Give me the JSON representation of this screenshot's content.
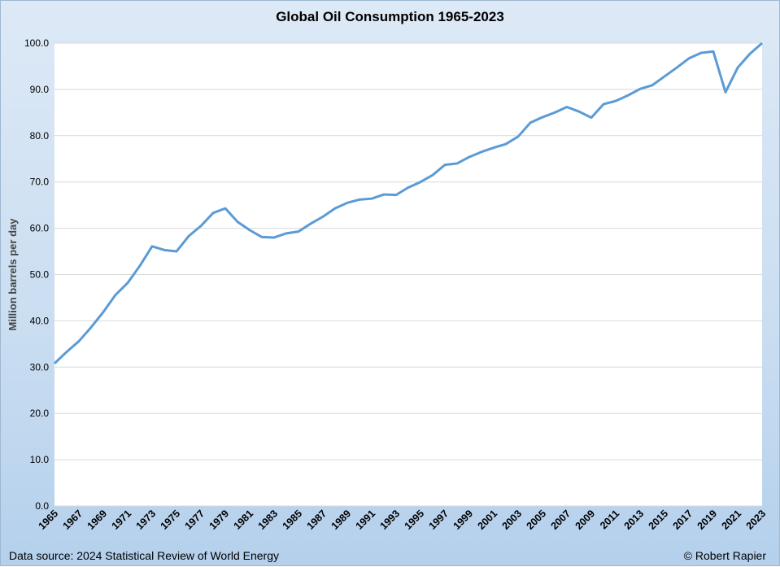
{
  "chart_data": {
    "type": "line",
    "title": "Global Oil Consumption 1965-2023",
    "xlabel": "",
    "ylabel": "Million barrels per day",
    "ylim": [
      0,
      100
    ],
    "yticks": [
      "0.0",
      "10.0",
      "20.0",
      "30.0",
      "40.0",
      "50.0",
      "60.0",
      "70.0",
      "80.0",
      "90.0",
      "100.0"
    ],
    "xlim": [
      1965,
      2023
    ],
    "xtick_step": 2,
    "grid": "horizontal",
    "line_color": "#5b9bd5",
    "x": [
      1965,
      1966,
      1967,
      1968,
      1969,
      1970,
      1971,
      1972,
      1973,
      1974,
      1975,
      1976,
      1977,
      1978,
      1979,
      1980,
      1981,
      1982,
      1983,
      1984,
      1985,
      1986,
      1987,
      1988,
      1989,
      1990,
      1991,
      1992,
      1993,
      1994,
      1995,
      1996,
      1997,
      1998,
      1999,
      2000,
      2001,
      2002,
      2003,
      2004,
      2005,
      2006,
      2007,
      2008,
      2009,
      2010,
      2011,
      2012,
      2013,
      2014,
      2015,
      2016,
      2017,
      2018,
      2019,
      2020,
      2021,
      2022,
      2023
    ],
    "y": [
      30.8,
      33.3,
      35.6,
      38.6,
      41.9,
      45.6,
      48.2,
      51.9,
      56.1,
      55.3,
      55.0,
      58.3,
      60.5,
      63.3,
      64.3,
      61.4,
      59.6,
      58.1,
      58.0,
      58.9,
      59.3,
      61.0,
      62.5,
      64.3,
      65.5,
      66.2,
      66.4,
      67.3,
      67.2,
      68.8,
      70.0,
      71.5,
      73.7,
      74.0,
      75.4,
      76.5,
      77.4,
      78.2,
      79.8,
      82.8,
      84.0,
      85.0,
      86.2,
      85.2,
      83.9,
      86.8,
      87.5,
      88.7,
      90.1,
      90.9,
      92.8,
      94.7,
      96.7,
      97.9,
      98.2,
      89.4,
      94.7,
      97.7,
      100.0
    ]
  },
  "footer": {
    "source": "Data source: 2024 Statistical Review of World Energy",
    "credit": "© Robert Rapier"
  }
}
